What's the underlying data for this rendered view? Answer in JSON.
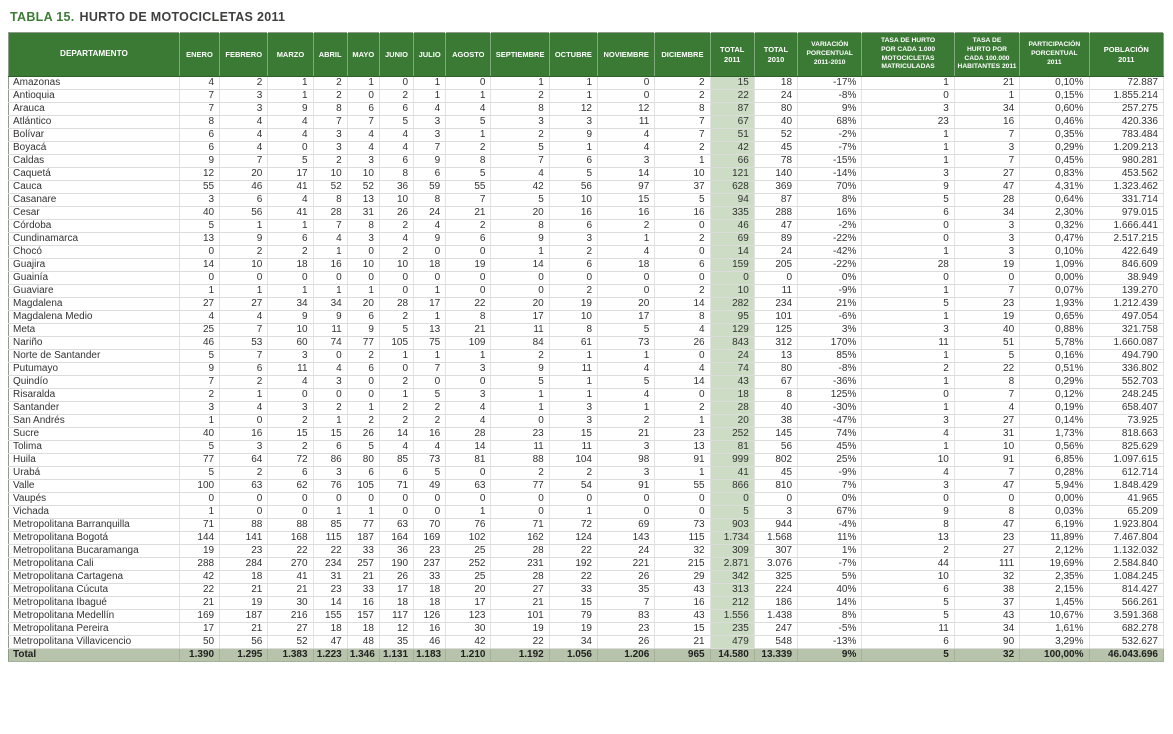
{
  "title": {
    "prefix": "TABLA 15.",
    "main": "HURTO DE MOTOCICLETAS 2011"
  },
  "table": {
    "columns": [
      {
        "id": "departamento",
        "label": "DEPARTAMENTO"
      },
      {
        "id": "enero",
        "label": "ENERO"
      },
      {
        "id": "febrero",
        "label": "FEBRERO"
      },
      {
        "id": "marzo",
        "label": "MARZO"
      },
      {
        "id": "abril",
        "label": "ABRIL"
      },
      {
        "id": "mayo",
        "label": "MAYO"
      },
      {
        "id": "junio",
        "label": "JUNIO"
      },
      {
        "id": "julio",
        "label": "JULIO"
      },
      {
        "id": "agosto",
        "label": "AGOSTO"
      },
      {
        "id": "septiembre",
        "label": "SEPTIEMBRE"
      },
      {
        "id": "octubre",
        "label": "OCTUBRE"
      },
      {
        "id": "noviembre",
        "label": "NOVIEMBRE"
      },
      {
        "id": "diciembre",
        "label": "DICIEMBRE"
      },
      {
        "id": "total_2011",
        "label": "TOTAL\n2011"
      },
      {
        "id": "total_2010",
        "label": "TOTAL\n2010"
      },
      {
        "id": "variacion",
        "label": "VARIACIÓN\nPORCENTUAL\n2011-2010"
      },
      {
        "id": "tasa_matriculadas",
        "label": "TASA DE HURTO\nPOR CADA 1.000\nMOTOCICLETAS\nMATRICULADAS"
      },
      {
        "id": "tasa_habitantes",
        "label": "TASA DE\nHURTO POR\nCADA 100.000\nHABITANTES 2011"
      },
      {
        "id": "participacion",
        "label": "PARTICIPACIÓN\nPORCENTUAL\n2011"
      },
      {
        "id": "poblacion",
        "label": "POBLACIÓN\n2011"
      }
    ],
    "rows": [
      [
        "Amazonas",
        "4",
        "2",
        "1",
        "2",
        "1",
        "0",
        "1",
        "0",
        "1",
        "1",
        "0",
        "2",
        "15",
        "18",
        "-17%",
        "1",
        "21",
        "0,10%",
        "72.887"
      ],
      [
        "Antioquia",
        "7",
        "3",
        "1",
        "2",
        "0",
        "2",
        "1",
        "1",
        "2",
        "1",
        "0",
        "2",
        "22",
        "24",
        "-8%",
        "0",
        "1",
        "0,15%",
        "1.855.214"
      ],
      [
        "Arauca",
        "7",
        "3",
        "9",
        "8",
        "6",
        "6",
        "4",
        "4",
        "8",
        "12",
        "12",
        "8",
        "87",
        "80",
        "9%",
        "3",
        "34",
        "0,60%",
        "257.275"
      ],
      [
        "Atlántico",
        "8",
        "4",
        "4",
        "7",
        "7",
        "5",
        "3",
        "5",
        "3",
        "3",
        "11",
        "7",
        "67",
        "40",
        "68%",
        "23",
        "16",
        "0,46%",
        "420.336"
      ],
      [
        "Bolívar",
        "6",
        "4",
        "4",
        "3",
        "4",
        "4",
        "3",
        "1",
        "2",
        "9",
        "4",
        "7",
        "51",
        "52",
        "-2%",
        "1",
        "7",
        "0,35%",
        "783.484"
      ],
      [
        "Boyacá",
        "6",
        "4",
        "0",
        "3",
        "4",
        "4",
        "7",
        "2",
        "5",
        "1",
        "4",
        "2",
        "42",
        "45",
        "-7%",
        "1",
        "3",
        "0,29%",
        "1.209.213"
      ],
      [
        "Caldas",
        "9",
        "7",
        "5",
        "2",
        "3",
        "6",
        "9",
        "8",
        "7",
        "6",
        "3",
        "1",
        "66",
        "78",
        "-15%",
        "1",
        "7",
        "0,45%",
        "980.281"
      ],
      [
        "Caquetá",
        "12",
        "20",
        "17",
        "10",
        "10",
        "8",
        "6",
        "5",
        "4",
        "5",
        "14",
        "10",
        "121",
        "140",
        "-14%",
        "3",
        "27",
        "0,83%",
        "453.562"
      ],
      [
        "Cauca",
        "55",
        "46",
        "41",
        "52",
        "52",
        "36",
        "59",
        "55",
        "42",
        "56",
        "97",
        "37",
        "628",
        "369",
        "70%",
        "9",
        "47",
        "4,31%",
        "1.323.462"
      ],
      [
        "Casanare",
        "3",
        "6",
        "4",
        "8",
        "13",
        "10",
        "8",
        "7",
        "5",
        "10",
        "15",
        "5",
        "94",
        "87",
        "8%",
        "5",
        "28",
        "0,64%",
        "331.714"
      ],
      [
        "Cesar",
        "40",
        "56",
        "41",
        "28",
        "31",
        "26",
        "24",
        "21",
        "20",
        "16",
        "16",
        "16",
        "335",
        "288",
        "16%",
        "6",
        "34",
        "2,30%",
        "979.015"
      ],
      [
        "Córdoba",
        "5",
        "1",
        "1",
        "7",
        "8",
        "2",
        "4",
        "2",
        "8",
        "6",
        "2",
        "0",
        "46",
        "47",
        "-2%",
        "0",
        "3",
        "0,32%",
        "1.666.441"
      ],
      [
        "Cundinamarca",
        "13",
        "9",
        "6",
        "4",
        "3",
        "4",
        "9",
        "6",
        "9",
        "3",
        "1",
        "2",
        "69",
        "89",
        "-22%",
        "0",
        "3",
        "0,47%",
        "2.517.215"
      ],
      [
        "Chocó",
        "0",
        "2",
        "2",
        "1",
        "0",
        "2",
        "0",
        "0",
        "1",
        "2",
        "4",
        "0",
        "14",
        "24",
        "-42%",
        "1",
        "3",
        "0,10%",
        "422.649"
      ],
      [
        "Guajira",
        "14",
        "10",
        "18",
        "16",
        "10",
        "10",
        "18",
        "19",
        "14",
        "6",
        "18",
        "6",
        "159",
        "205",
        "-22%",
        "28",
        "19",
        "1,09%",
        "846.609"
      ],
      [
        "Guainía",
        "0",
        "0",
        "0",
        "0",
        "0",
        "0",
        "0",
        "0",
        "0",
        "0",
        "0",
        "0",
        "0",
        "0",
        "0%",
        "0",
        "0",
        "0,00%",
        "38.949"
      ],
      [
        "Guaviare",
        "1",
        "1",
        "1",
        "1",
        "1",
        "0",
        "1",
        "0",
        "0",
        "2",
        "0",
        "2",
        "10",
        "11",
        "-9%",
        "1",
        "7",
        "0,07%",
        "139.270"
      ],
      [
        "Magdalena",
        "27",
        "27",
        "34",
        "34",
        "20",
        "28",
        "17",
        "22",
        "20",
        "19",
        "20",
        "14",
        "282",
        "234",
        "21%",
        "5",
        "23",
        "1,93%",
        "1.212.439"
      ],
      [
        "Magdalena Medio",
        "4",
        "4",
        "9",
        "9",
        "6",
        "2",
        "1",
        "8",
        "17",
        "10",
        "17",
        "8",
        "95",
        "101",
        "-6%",
        "1",
        "19",
        "0,65%",
        "497.054"
      ],
      [
        "Meta",
        "25",
        "7",
        "10",
        "11",
        "9",
        "5",
        "13",
        "21",
        "11",
        "8",
        "5",
        "4",
        "129",
        "125",
        "3%",
        "3",
        "40",
        "0,88%",
        "321.758"
      ],
      [
        "Nariño",
        "46",
        "53",
        "60",
        "74",
        "77",
        "105",
        "75",
        "109",
        "84",
        "61",
        "73",
        "26",
        "843",
        "312",
        "170%",
        "11",
        "51",
        "5,78%",
        "1.660.087"
      ],
      [
        "Norte de Santander",
        "5",
        "7",
        "3",
        "0",
        "2",
        "1",
        "1",
        "1",
        "2",
        "1",
        "1",
        "0",
        "24",
        "13",
        "85%",
        "1",
        "5",
        "0,16%",
        "494.790"
      ],
      [
        "Putumayo",
        "9",
        "6",
        "11",
        "4",
        "6",
        "0",
        "7",
        "3",
        "9",
        "11",
        "4",
        "4",
        "74",
        "80",
        "-8%",
        "2",
        "22",
        "0,51%",
        "336.802"
      ],
      [
        "Quindío",
        "7",
        "2",
        "4",
        "3",
        "0",
        "2",
        "0",
        "0",
        "5",
        "1",
        "5",
        "14",
        "43",
        "67",
        "-36%",
        "1",
        "8",
        "0,29%",
        "552.703"
      ],
      [
        "Risaralda",
        "2",
        "1",
        "0",
        "0",
        "0",
        "1",
        "5",
        "3",
        "1",
        "1",
        "4",
        "0",
        "18",
        "8",
        "125%",
        "0",
        "7",
        "0,12%",
        "248.245"
      ],
      [
        "Santander",
        "3",
        "4",
        "3",
        "2",
        "1",
        "2",
        "2",
        "4",
        "1",
        "3",
        "1",
        "2",
        "28",
        "40",
        "-30%",
        "1",
        "4",
        "0,19%",
        "658.407"
      ],
      [
        "San Andrés",
        "1",
        "0",
        "2",
        "1",
        "2",
        "2",
        "2",
        "4",
        "0",
        "3",
        "2",
        "1",
        "20",
        "38",
        "-47%",
        "3",
        "27",
        "0,14%",
        "73.925"
      ],
      [
        "Sucre",
        "40",
        "16",
        "15",
        "15",
        "26",
        "14",
        "16",
        "28",
        "23",
        "15",
        "21",
        "23",
        "252",
        "145",
        "74%",
        "4",
        "31",
        "1,73%",
        "818.663"
      ],
      [
        "Tolima",
        "5",
        "3",
        "2",
        "6",
        "5",
        "4",
        "4",
        "14",
        "11",
        "11",
        "3",
        "13",
        "81",
        "56",
        "45%",
        "1",
        "10",
        "0,56%",
        "825.629"
      ],
      [
        "Huila",
        "77",
        "64",
        "72",
        "86",
        "80",
        "85",
        "73",
        "81",
        "88",
        "104",
        "98",
        "91",
        "999",
        "802",
        "25%",
        "10",
        "91",
        "6,85%",
        "1.097.615"
      ],
      [
        "Urabá",
        "5",
        "2",
        "6",
        "3",
        "6",
        "6",
        "5",
        "0",
        "2",
        "2",
        "3",
        "1",
        "41",
        "45",
        "-9%",
        "4",
        "7",
        "0,28%",
        "612.714"
      ],
      [
        "Valle",
        "100",
        "63",
        "62",
        "76",
        "105",
        "71",
        "49",
        "63",
        "77",
        "54",
        "91",
        "55",
        "866",
        "810",
        "7%",
        "3",
        "47",
        "5,94%",
        "1.848.429"
      ],
      [
        "Vaupés",
        "0",
        "0",
        "0",
        "0",
        "0",
        "0",
        "0",
        "0",
        "0",
        "0",
        "0",
        "0",
        "0",
        "0",
        "0%",
        "0",
        "0",
        "0,00%",
        "41.965"
      ],
      [
        "Vichada",
        "1",
        "0",
        "0",
        "1",
        "1",
        "0",
        "0",
        "1",
        "0",
        "1",
        "0",
        "0",
        "5",
        "3",
        "67%",
        "9",
        "8",
        "0,03%",
        "65.209"
      ],
      [
        "Metropolitana Barranquilla",
        "71",
        "88",
        "88",
        "85",
        "77",
        "63",
        "70",
        "76",
        "71",
        "72",
        "69",
        "73",
        "903",
        "944",
        "-4%",
        "8",
        "47",
        "6,19%",
        "1.923.804"
      ],
      [
        "Metropolitana Bogotá",
        "144",
        "141",
        "168",
        "115",
        "187",
        "164",
        "169",
        "102",
        "162",
        "124",
        "143",
        "115",
        "1.734",
        "1.568",
        "11%",
        "13",
        "23",
        "11,89%",
        "7.467.804"
      ],
      [
        "Metropolitana Bucaramanga",
        "19",
        "23",
        "22",
        "22",
        "33",
        "36",
        "23",
        "25",
        "28",
        "22",
        "24",
        "32",
        "309",
        "307",
        "1%",
        "2",
        "27",
        "2,12%",
        "1.132.032"
      ],
      [
        "Metropolitana Cali",
        "288",
        "284",
        "270",
        "234",
        "257",
        "190",
        "237",
        "252",
        "231",
        "192",
        "221",
        "215",
        "2.871",
        "3.076",
        "-7%",
        "44",
        "111",
        "19,69%",
        "2.584.840"
      ],
      [
        "Metropolitana Cartagena",
        "42",
        "18",
        "41",
        "31",
        "21",
        "26",
        "33",
        "25",
        "28",
        "22",
        "26",
        "29",
        "342",
        "325",
        "5%",
        "10",
        "32",
        "2,35%",
        "1.084.245"
      ],
      [
        "Metropolitana Cúcuta",
        "22",
        "21",
        "21",
        "23",
        "33",
        "17",
        "18",
        "20",
        "27",
        "33",
        "35",
        "43",
        "313",
        "224",
        "40%",
        "6",
        "38",
        "2,15%",
        "814.427"
      ],
      [
        "Metropolitana Ibagué",
        "21",
        "19",
        "30",
        "14",
        "16",
        "18",
        "18",
        "17",
        "21",
        "15",
        "7",
        "16",
        "212",
        "186",
        "14%",
        "5",
        "37",
        "1,45%",
        "566.261"
      ],
      [
        "Metropolitana Medellín",
        "169",
        "187",
        "216",
        "155",
        "157",
        "117",
        "126",
        "123",
        "101",
        "79",
        "83",
        "43",
        "1.556",
        "1.438",
        "8%",
        "5",
        "43",
        "10,67%",
        "3.591.368"
      ],
      [
        "Metropolitana Pereira",
        "17",
        "21",
        "27",
        "18",
        "18",
        "12",
        "16",
        "30",
        "19",
        "19",
        "23",
        "15",
        "235",
        "247",
        "-5%",
        "11",
        "34",
        "1,61%",
        "682.278"
      ],
      [
        "Metropolitana Villavicencio",
        "50",
        "56",
        "52",
        "47",
        "48",
        "35",
        "46",
        "42",
        "22",
        "34",
        "26",
        "21",
        "479",
        "548",
        "-13%",
        "6",
        "90",
        "3,29%",
        "532.627"
      ]
    ],
    "total": [
      "Total",
      "1.390",
      "1.295",
      "1.383",
      "1.223",
      "1.346",
      "1.131",
      "1.183",
      "1.210",
      "1.192",
      "1.056",
      "1.206",
      "965",
      "14.580",
      "13.339",
      "9%",
      "5",
      "32",
      "100,00%",
      "46.043.696"
    ]
  }
}
